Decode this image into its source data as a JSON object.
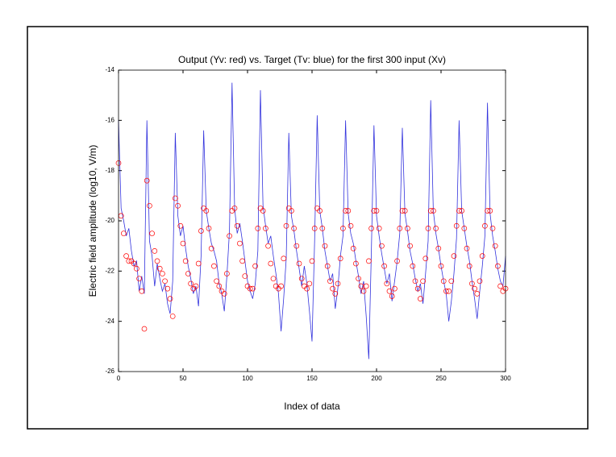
{
  "chart_data": {
    "type": "line",
    "title": "Output (Yv: red) vs. Target (Tv: blue) for the first 300 input (Xv)",
    "x_label": "Index of data",
    "y_label": "Electric field amplitude (log10, V/m)",
    "xlim": [
      0,
      300
    ],
    "xticks": [
      0,
      50,
      100,
      150,
      200,
      250,
      300
    ],
    "ylim": [
      -26,
      -14
    ],
    "yticks": [
      -26,
      -24,
      -22,
      -20,
      -18,
      -16,
      -14
    ],
    "grid": false,
    "x": [
      0,
      2,
      4,
      6,
      8,
      10,
      12,
      14,
      16,
      18,
      20,
      22,
      24,
      26,
      28,
      30,
      32,
      34,
      36,
      38,
      40,
      42,
      44,
      46,
      48,
      50,
      52,
      54,
      56,
      58,
      60,
      62,
      64,
      66,
      68,
      70,
      72,
      74,
      76,
      78,
      80,
      82,
      84,
      86,
      88,
      90,
      92,
      94,
      96,
      98,
      100,
      102,
      104,
      106,
      108,
      110,
      112,
      114,
      116,
      118,
      120,
      122,
      124,
      126,
      128,
      130,
      132,
      134,
      136,
      138,
      140,
      142,
      144,
      146,
      148,
      150,
      152,
      154,
      156,
      158,
      160,
      162,
      164,
      166,
      168,
      170,
      172,
      174,
      176,
      178,
      180,
      182,
      184,
      186,
      188,
      190,
      192,
      194,
      196,
      198,
      200,
      202,
      204,
      206,
      208,
      210,
      212,
      214,
      216,
      218,
      220,
      222,
      224,
      226,
      228,
      230,
      232,
      234,
      236,
      238,
      240,
      242,
      244,
      246,
      248,
      250,
      252,
      254,
      256,
      258,
      260,
      262,
      264,
      266,
      268,
      270,
      272,
      274,
      276,
      278,
      280,
      282,
      284,
      286,
      288,
      290,
      292,
      294,
      296,
      298,
      300
    ],
    "series": [
      {
        "style": "line",
        "color": "#3333dd",
        "values": [
          -16,
          -19.5,
          -20,
          -20.6,
          -20.3,
          -21.2,
          -21.8,
          -21.6,
          -22.8,
          -22.2,
          -22.9,
          -16,
          -20.8,
          -21.4,
          -22.6,
          -21.7,
          -22.3,
          -22.8,
          -22.5,
          -23.3,
          -23.7,
          -22.4,
          -16.5,
          -19.8,
          -20.6,
          -20.2,
          -21.1,
          -21.8,
          -22.3,
          -22.9,
          -22.6,
          -23.4,
          -21.4,
          -16.4,
          -19.6,
          -20.3,
          -20.9,
          -21.2,
          -21.6,
          -22.5,
          -22.9,
          -23.6,
          -22.2,
          -20.4,
          -14.5,
          -19.5,
          -20.5,
          -20.1,
          -20.8,
          -21.6,
          -22.4,
          -22.8,
          -23.1,
          -22.5,
          -21.2,
          -14.8,
          -19.4,
          -20.2,
          -20.9,
          -20.6,
          -21.4,
          -22.1,
          -22.9,
          -24.4,
          -23.1,
          -21.5,
          -16.5,
          -19.8,
          -20.4,
          -21.2,
          -21.9,
          -22.6,
          -21.8,
          -22.5,
          -23.6,
          -24.8,
          -20.8,
          -15.8,
          -19.6,
          -20.3,
          -21.2,
          -21.8,
          -22.4,
          -22.1,
          -23.5,
          -22.7,
          -21.4,
          -20.6,
          -16,
          -19.7,
          -20.5,
          -20.9,
          -21.6,
          -22.2,
          -22.9,
          -22.4,
          -23.8,
          -25.5,
          -21.2,
          -16.2,
          -19.8,
          -20.6,
          -21.3,
          -21.9,
          -22.5,
          -22.1,
          -23.2,
          -22.4,
          -21.6,
          -20.5,
          -16.3,
          -19.7,
          -20.4,
          -21.2,
          -21.7,
          -22.3,
          -22.8,
          -22.5,
          -23.3,
          -22.1,
          -20.8,
          -15.2,
          -19.6,
          -20.5,
          -21.1,
          -21.8,
          -22.4,
          -22.9,
          -24,
          -23.2,
          -22.1,
          -20.7,
          -16,
          -19.6,
          -20.3,
          -21,
          -21.6,
          -22.4,
          -23.1,
          -23.9,
          -22.8,
          -21.8,
          -20.6,
          -15.3,
          -19.7,
          -20.6,
          -21.2,
          -21.9,
          -22.4,
          -22.6,
          -21.4
        ]
      },
      {
        "style": "circles",
        "color": "#ff0000",
        "values": [
          -17.7,
          -19.8,
          -20.5,
          -21.4,
          -21.6,
          -21.6,
          -21.7,
          -21.9,
          -22.3,
          -22.8,
          -24.3,
          -18.4,
          -19.4,
          -20.5,
          -21.2,
          -21.6,
          -21.9,
          -22.1,
          -22.4,
          -22.7,
          -23.1,
          -23.8,
          -19.1,
          -19.4,
          -20.2,
          -20.9,
          -21.6,
          -22.1,
          -22.5,
          -22.7,
          -22.6,
          -21.7,
          -20.4,
          -19.5,
          -19.6,
          -20.3,
          -21.1,
          -21.8,
          -22.4,
          -22.6,
          -22.8,
          -22.9,
          -22.1,
          -20.6,
          -19.6,
          -19.5,
          -20.2,
          -20.9,
          -21.6,
          -22.2,
          -22.6,
          -22.7,
          -22.7,
          -21.8,
          -20.3,
          -19.5,
          -19.6,
          -20.3,
          -21,
          -21.7,
          -22.3,
          -22.6,
          -22.7,
          -22.6,
          -21.5,
          -20.2,
          -19.5,
          -19.6,
          -20.3,
          -21,
          -21.7,
          -22.3,
          -22.6,
          -22.7,
          -22.5,
          -21.6,
          -20.3,
          -19.5,
          -19.6,
          -20.3,
          -21,
          -21.8,
          -22.4,
          -22.7,
          -22.9,
          -22.5,
          -21.5,
          -20.3,
          -19.6,
          -19.6,
          -20.2,
          -21.1,
          -21.7,
          -22.3,
          -22.6,
          -22.8,
          -22.6,
          -21.6,
          -20.3,
          -19.6,
          -19.6,
          -20.3,
          -21,
          -21.8,
          -22.5,
          -22.8,
          -23,
          -22.7,
          -21.6,
          -20.3,
          -19.6,
          -19.6,
          -20.3,
          -21,
          -21.8,
          -22.4,
          -22.7,
          -23.1,
          -22.4,
          -21.5,
          -20.3,
          -19.6,
          -19.6,
          -20.3,
          -21.1,
          -21.8,
          -22.4,
          -22.8,
          -22.8,
          -22.4,
          -21.4,
          -20.2,
          -19.6,
          -19.6,
          -20.3,
          -21.1,
          -21.8,
          -22.5,
          -22.7,
          -22.9,
          -22.4,
          -21.4,
          -20.2,
          -19.6,
          -19.6,
          -20.3,
          -21,
          -21.8,
          -22.6,
          -22.8,
          -22.7
        ]
      }
    ]
  }
}
